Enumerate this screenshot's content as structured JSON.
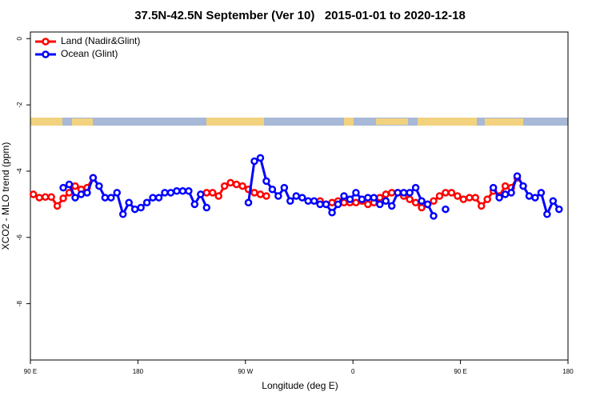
{
  "chart_data": {
    "type": "line",
    "title": "37.5N-42.5N September (Ver 10)   2015-01-01 to 2020-12-18",
    "x_label": "Longitude (deg E)",
    "y_label": "XCO2 - MLO trend (ppm)",
    "xlim": [
      90,
      540
    ],
    "xticks": [
      {
        "value": 90,
        "label": "90 E"
      },
      180,
      {
        "value": 270,
        "label": "90 W"
      },
      {
        "value": 360,
        "label": "0"
      },
      {
        "value": 450,
        "label": "90 E"
      },
      {
        "value": 540,
        "label": "180"
      }
    ],
    "ylim": [
      -9.7,
      0.2
    ],
    "yticks": [
      0,
      -2,
      -4,
      -6,
      -8
    ],
    "legend": "top-left",
    "x": [
      92.5,
      97.5,
      102.5,
      107.5,
      112.5,
      117.5,
      122.5,
      127.5,
      132.5,
      137.5,
      142.5,
      147.5,
      152.5,
      157.5,
      162.5,
      167.5,
      172.5,
      177.5,
      182.5,
      187.5,
      192.5,
      197.5,
      202.5,
      207.5,
      212.5,
      217.5,
      222.5,
      227.5,
      232.5,
      237.5,
      242.5,
      247.5,
      252.5,
      257.5,
      262.5,
      267.5,
      272.5,
      277.5,
      282.5,
      287.5,
      292.5,
      297.5,
      302.5,
      307.5,
      312.5,
      317.5,
      322.5,
      327.5,
      332.5,
      337.5,
      342.5,
      347.5,
      352.5,
      357.5,
      362.5,
      367.5,
      372.5,
      377.5,
      382.5,
      387.5,
      392.5,
      397.5,
      402.5,
      407.5,
      412.5,
      417.5,
      422.5,
      427.5,
      432.5,
      437.5,
      442.5,
      447.5,
      452.5,
      457.5,
      462.5,
      467.5,
      472.5,
      477.5,
      482.5,
      487.5,
      492.5,
      497.5,
      502.5,
      507.5,
      512.5,
      517.5,
      522.5,
      527.5,
      532.5,
      537.5
    ],
    "series": [
      {
        "name": "Land (Nadir&Glint)",
        "color": "#ff0000",
        "values": [
          -4.7,
          -4.8,
          -4.78,
          -4.78,
          -5.05,
          -4.82,
          -4.65,
          -4.45,
          -4.55,
          -4.5,
          -4.2,
          null,
          null,
          null,
          null,
          null,
          null,
          null,
          null,
          null,
          null,
          null,
          null,
          null,
          null,
          null,
          null,
          null,
          null,
          -4.65,
          -4.65,
          -4.75,
          -4.45,
          -4.35,
          -4.4,
          -4.45,
          -4.55,
          -4.65,
          -4.7,
          -4.75,
          null,
          null,
          null,
          null,
          null,
          null,
          null,
          null,
          -4.9,
          -5.0,
          -4.95,
          -4.9,
          -4.95,
          -4.95,
          -4.95,
          -4.9,
          -5.0,
          -4.95,
          -4.8,
          -4.7,
          -4.65,
          -4.65,
          -4.75,
          -4.85,
          -4.95,
          -5.1,
          -5.0,
          -4.9,
          -4.75,
          -4.65,
          -4.65,
          -4.75,
          -4.85,
          -4.8,
          -4.8,
          -5.05,
          -4.85,
          -4.6,
          -4.75,
          -4.45,
          -4.5,
          -4.2,
          null,
          null,
          null,
          null,
          null,
          null,
          null,
          null
        ]
      },
      {
        "name": "Ocean (Glint)",
        "color": "#0000ff",
        "values": [
          null,
          null,
          null,
          null,
          null,
          -4.5,
          -4.4,
          -4.8,
          -4.7,
          -4.65,
          -4.2,
          -4.45,
          -4.8,
          -4.8,
          -4.65,
          -5.3,
          -4.95,
          -5.15,
          -5.1,
          -4.95,
          -4.8,
          -4.8,
          -4.65,
          -4.65,
          -4.6,
          -4.6,
          -4.6,
          -5.0,
          -4.7,
          -5.1,
          null,
          null,
          null,
          null,
          null,
          null,
          -4.95,
          -3.7,
          -3.6,
          -4.3,
          -4.55,
          -4.75,
          -4.5,
          -4.9,
          -4.75,
          -4.8,
          -4.9,
          -4.9,
          -5.0,
          -5.0,
          -5.25,
          -5.0,
          -4.75,
          -4.85,
          -4.65,
          -4.85,
          -4.8,
          -4.8,
          -5.0,
          -4.9,
          -5.05,
          -4.65,
          -4.65,
          -4.65,
          -4.5,
          -4.9,
          -5.0,
          -5.35,
          null,
          -5.15,
          null,
          null,
          null,
          null,
          null,
          null,
          null,
          -4.5,
          -4.8,
          -4.7,
          -4.65,
          -4.15,
          -4.45,
          -4.75,
          -4.8,
          -4.65,
          -5.3,
          -4.9,
          -5.15,
          null
        ]
      }
    ]
  }
}
